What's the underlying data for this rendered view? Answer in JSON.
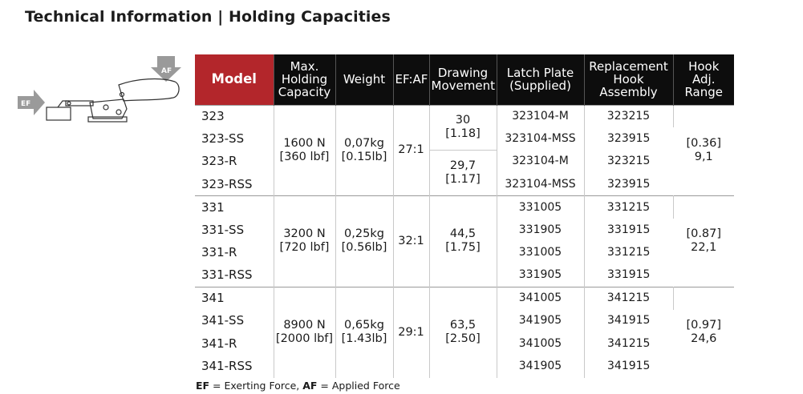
{
  "title": "Technical Information | Holding Capacities",
  "diagram": {
    "ef_label": "EF",
    "af_label": "AF",
    "colors": {
      "arrow": "#9a9a9a"
    }
  },
  "headers": {
    "model": "Model",
    "capacity": [
      "Max.",
      "Holding",
      "Capacity"
    ],
    "weight": "Weight",
    "ratio": "EF:AF",
    "movement": [
      "Drawing",
      "Movement"
    ],
    "latch": [
      "Latch Plate",
      "(Supplied)"
    ],
    "hook": [
      "Replacement",
      "Hook",
      "Assembly"
    ],
    "range": [
      "Hook",
      "Adj.",
      "Range"
    ]
  },
  "groups": [
    {
      "capacity": [
        "1600 N",
        "[360 lbf]"
      ],
      "weight": [
        "0,07kg",
        "[0.15lb]"
      ],
      "ratio": "27:1",
      "movement_a": [
        "30",
        "[1.18]"
      ],
      "movement_b": [
        "29,7",
        "[1.17]"
      ],
      "range": [
        "[0.36]",
        "9,1"
      ],
      "rows": [
        {
          "model": "323",
          "latch": "323104-M",
          "hook": "323215"
        },
        {
          "model": "323-SS",
          "latch": "323104-MSS",
          "hook": "323915"
        },
        {
          "model": "323-R",
          "latch": "323104-M",
          "hook": "323215"
        },
        {
          "model": "323-RSS",
          "latch": "323104-MSS",
          "hook": "323915"
        }
      ]
    },
    {
      "capacity": [
        "3200 N",
        "[720 lbf]"
      ],
      "weight": [
        "0,25kg",
        "[0.56lb]"
      ],
      "ratio": "32:1",
      "movement": [
        "44,5",
        "[1.75]"
      ],
      "range": [
        "[0.87]",
        "22,1"
      ],
      "rows": [
        {
          "model": "331",
          "latch": "331005",
          "hook": "331215"
        },
        {
          "model": "331-SS",
          "latch": "331905",
          "hook": "331915"
        },
        {
          "model": "331-R",
          "latch": "331005",
          "hook": "331215"
        },
        {
          "model": "331-RSS",
          "latch": "331905",
          "hook": "331915"
        }
      ]
    },
    {
      "capacity": [
        "8900 N",
        "[2000 lbf]"
      ],
      "weight": [
        "0,65kg",
        "[1.43lb]"
      ],
      "ratio": "29:1",
      "movement": [
        "63,5",
        "[2.50]"
      ],
      "range": [
        "[0.97]",
        "24,6"
      ],
      "rows": [
        {
          "model": "341",
          "latch": "341005",
          "hook": "341215"
        },
        {
          "model": "341-SS",
          "latch": "341905",
          "hook": "341915"
        },
        {
          "model": "341-R",
          "latch": "341005",
          "hook": "341215"
        },
        {
          "model": "341-RSS",
          "latch": "341905",
          "hook": "341915"
        }
      ]
    }
  ],
  "footnote": {
    "ef": "EF",
    "ef_text": " = Exerting Force, ",
    "af": "AF",
    "af_text": " = Applied Force"
  },
  "colors": {
    "header_bg": "#0d0d0d",
    "model_header_bg": "#b3262b"
  }
}
